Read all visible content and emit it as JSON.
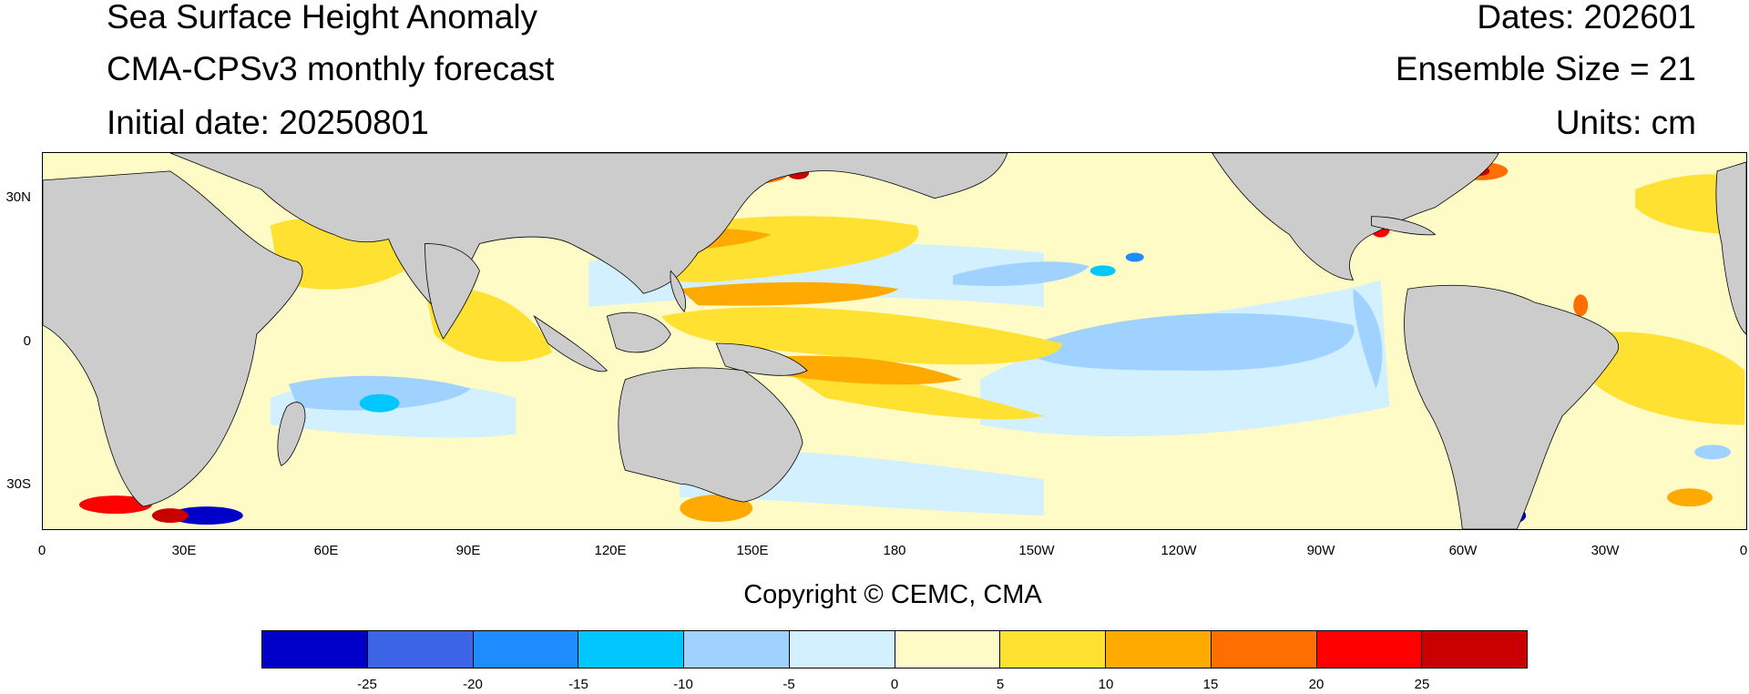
{
  "titles": {
    "left": [
      "Sea Surface Height Anomaly",
      "CMA-CPSv3 monthly forecast",
      "Initial date: 20250801"
    ],
    "right": [
      "Dates: 202601",
      "Ensemble Size = 21",
      "Units: cm"
    ]
  },
  "map": {
    "lat_labels": [
      "30N",
      "0",
      "30S"
    ],
    "lon_labels": [
      "0",
      "30E",
      "60E",
      "90E",
      "120E",
      "150E",
      "180",
      "150W",
      "120W",
      "90W",
      "60W",
      "30W",
      "0"
    ],
    "lat_range": [
      -40,
      40
    ],
    "lon_range": [
      0,
      360
    ],
    "land_color": "#cccccc"
  },
  "copyright": "Copyright © CEMC, CMA",
  "colorbar": {
    "colors": [
      "#0000c8",
      "#3c64e6",
      "#1e8cff",
      "#00c8ff",
      "#a0d2ff",
      "#d2f0ff",
      "#fffbc6",
      "#ffe132",
      "#ffaa00",
      "#ff6e00",
      "#ff0000",
      "#c80000"
    ],
    "labels": [
      "-25",
      "-20",
      "-15",
      "-10",
      "-5",
      "0",
      "5",
      "10",
      "15",
      "20",
      "25"
    ]
  }
}
